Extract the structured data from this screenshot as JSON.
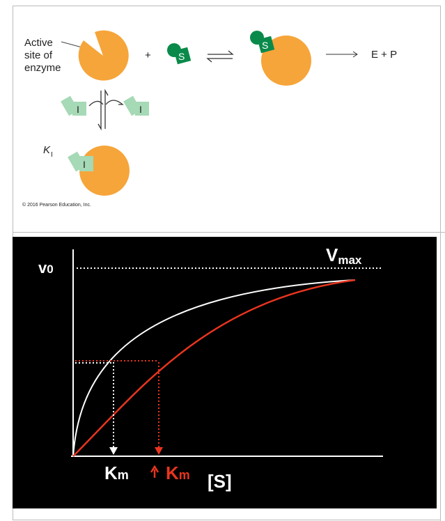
{
  "panel_top": {
    "active_site_label": [
      "Active",
      "site of",
      "enzyme"
    ],
    "plus": "+",
    "substrate": "S",
    "substrate_bound": "S",
    "products": "E + P",
    "inhibitor_left": "I",
    "inhibitor_right": "I",
    "inhibitor_bound": "I",
    "ki_symbol": "K",
    "ki_subscript": "I",
    "copyright": "© 2016 Pearson Education, Inc."
  },
  "panel_bottom": {
    "y_axis_label": "v",
    "y_axis_sub": "0",
    "vmax": "V",
    "vmax_sub": "max",
    "km_label": "K",
    "km_sub": "m",
    "km_inhibited_label": "K",
    "km_inhibited_sub": "m",
    "x_axis_label": "[S]"
  }
}
